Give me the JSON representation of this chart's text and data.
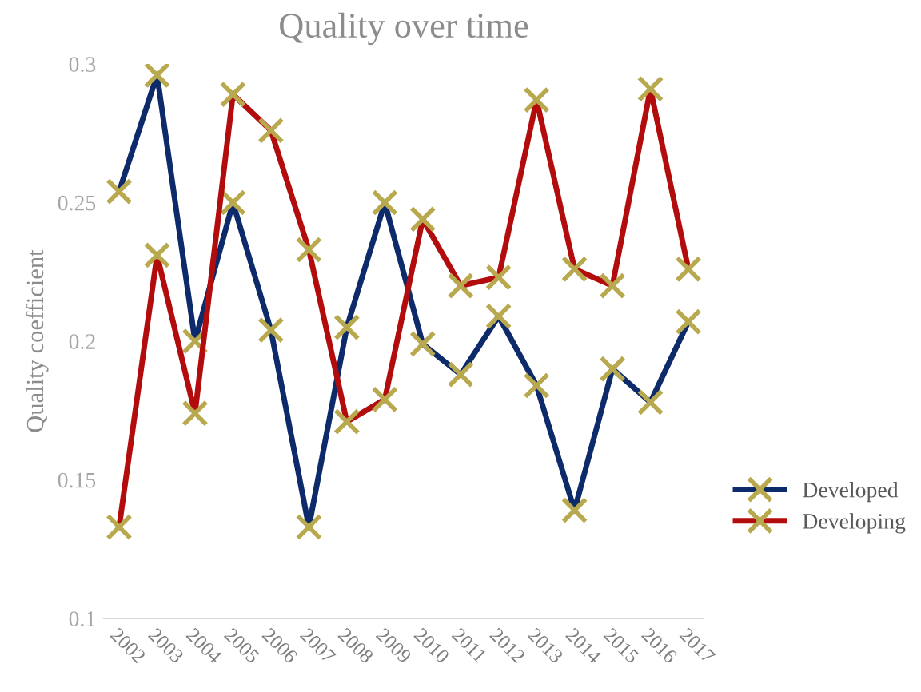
{
  "chart_data": {
    "type": "line",
    "title": "Quality over time",
    "ylabel": "Quality coefficient",
    "categories": [
      "2002",
      "2003",
      "2004",
      "2005",
      "2006",
      "2007",
      "2008",
      "2009",
      "2010",
      "2011",
      "2012",
      "2013",
      "2014",
      "2015",
      "2016",
      "2017"
    ],
    "series": [
      {
        "name": "Developed",
        "color": "#0d2a6b",
        "values": [
          0.254,
          0.296,
          0.2,
          0.25,
          0.204,
          0.133,
          0.205,
          0.25,
          0.199,
          0.188,
          0.209,
          0.184,
          0.139,
          0.19,
          0.178,
          0.207
        ]
      },
      {
        "name": "Developing",
        "color": "#b30c0c",
        "values": [
          0.133,
          0.231,
          0.174,
          0.289,
          0.276,
          0.233,
          0.171,
          0.179,
          0.244,
          0.22,
          0.223,
          0.287,
          0.226,
          0.22,
          0.291,
          0.226
        ]
      }
    ],
    "ylim": [
      0.1,
      0.3
    ],
    "yticks": [
      0.1,
      0.15,
      0.2,
      0.25,
      0.3
    ],
    "grid": false,
    "legend": "right",
    "marker": "cross",
    "line_style": "solid"
  }
}
